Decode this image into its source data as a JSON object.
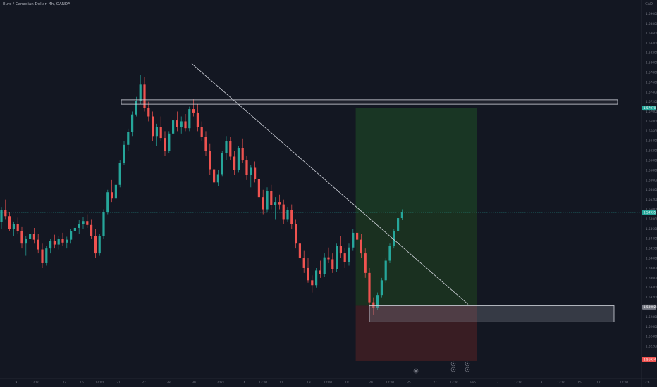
{
  "header": {
    "symbol_line": "Euro / Canadian Dollar, 4h, OANDA",
    "currency": "CAD"
  },
  "colors": {
    "background": "#131722",
    "up": "#26a69a",
    "down": "#ef5350",
    "profit_zone": "#1b3a25",
    "loss_zone": "#3b1e24",
    "price_line": "#26a69a"
  },
  "icons": [
    "dividend-marker-icon",
    "earnings-marker-icon",
    "split-marker-icon"
  ],
  "chart_data": {
    "type": "candlestick",
    "title": "Euro / Canadian Dollar, 4h, OANDA",
    "ylim": [
      1.5154,
      1.5908
    ],
    "y_ticks": [
      "1.59000",
      "1.58800",
      "1.58600",
      "1.58400",
      "1.58200",
      "1.58000",
      "1.57800",
      "1.57600",
      "1.57400",
      "1.57200",
      "1.57000",
      "1.56800",
      "1.56600",
      "1.56400",
      "1.56200",
      "1.56000",
      "1.55800",
      "1.55600",
      "1.55400",
      "1.55200",
      "1.55000",
      "1.54800",
      "1.54600",
      "1.54400",
      "1.54200",
      "1.54000",
      "1.53800",
      "1.53600",
      "1.53400",
      "1.53200",
      "1.53000",
      "1.52800",
      "1.52600",
      "1.52400",
      "1.52200"
    ],
    "x_ticks": [
      "9",
      "12:00",
      "14",
      "16",
      "12:00",
      "21",
      "22",
      "28",
      "30",
      "2021",
      "6",
      "12:00",
      "11",
      "13",
      "12:00",
      "18",
      "20",
      "12:00",
      "25",
      "27",
      "12:00",
      "Feb",
      "3",
      "12:00",
      "8",
      "12:00",
      "15",
      "17",
      "12:00"
    ],
    "price_tags": {
      "current": "1.54935",
      "target": "1.57070",
      "stop": "1.53002",
      "bottom": "1.51934"
    },
    "candles": [
      [
        1.5474,
        1.5505,
        1.546,
        1.5498
      ],
      [
        1.5498,
        1.552,
        1.548,
        1.5486
      ],
      [
        1.5486,
        1.5494,
        1.5455,
        1.546
      ],
      [
        1.546,
        1.5475,
        1.5445,
        1.547
      ],
      [
        1.547,
        1.5483,
        1.545,
        1.5455
      ],
      [
        1.5455,
        1.5465,
        1.542,
        1.543
      ],
      [
        1.543,
        1.5445,
        1.5405,
        1.544
      ],
      [
        1.544,
        1.5458,
        1.5425,
        1.545
      ],
      [
        1.545,
        1.5462,
        1.543,
        1.5438
      ],
      [
        1.5438,
        1.545,
        1.541,
        1.5418
      ],
      [
        1.5418,
        1.543,
        1.538,
        1.539
      ],
      [
        1.539,
        1.5425,
        1.5385,
        1.542
      ],
      [
        1.542,
        1.544,
        1.541,
        1.5435
      ],
      [
        1.5435,
        1.5448,
        1.542,
        1.5428
      ],
      [
        1.5428,
        1.5445,
        1.5418,
        1.544
      ],
      [
        1.544,
        1.5452,
        1.5425,
        1.5432
      ],
      [
        1.5432,
        1.5444,
        1.542,
        1.5438
      ],
      [
        1.5438,
        1.546,
        1.543,
        1.5455
      ],
      [
        1.5455,
        1.547,
        1.5445,
        1.5462
      ],
      [
        1.5462,
        1.5478,
        1.545,
        1.547
      ],
      [
        1.547,
        1.5485,
        1.546,
        1.5476
      ],
      [
        1.5476,
        1.549,
        1.5462,
        1.5468
      ],
      [
        1.5468,
        1.548,
        1.544,
        1.5445
      ],
      [
        1.5445,
        1.546,
        1.54,
        1.541
      ],
      [
        1.541,
        1.545,
        1.5405,
        1.5445
      ],
      [
        1.5445,
        1.55,
        1.544,
        1.5495
      ],
      [
        1.5495,
        1.554,
        1.549,
        1.5535
      ],
      [
        1.5535,
        1.556,
        1.5515,
        1.5522
      ],
      [
        1.5522,
        1.5555,
        1.5518,
        1.555
      ],
      [
        1.555,
        1.56,
        1.5545,
        1.5595
      ],
      [
        1.5595,
        1.564,
        1.559,
        1.5632
      ],
      [
        1.5632,
        1.5665,
        1.562,
        1.5658
      ],
      [
        1.5658,
        1.57,
        1.565,
        1.5694
      ],
      [
        1.5694,
        1.573,
        1.569,
        1.5722
      ],
      [
        1.5722,
        1.5775,
        1.5715,
        1.5755
      ],
      [
        1.5755,
        1.577,
        1.57,
        1.5708
      ],
      [
        1.5708,
        1.572,
        1.568,
        1.569
      ],
      [
        1.569,
        1.57,
        1.564,
        1.565
      ],
      [
        1.565,
        1.5675,
        1.563,
        1.5668
      ],
      [
        1.5668,
        1.569,
        1.564,
        1.5646
      ],
      [
        1.5646,
        1.566,
        1.561,
        1.562
      ],
      [
        1.562,
        1.566,
        1.5615,
        1.5655
      ],
      [
        1.5655,
        1.569,
        1.565,
        1.5682
      ],
      [
        1.5682,
        1.57,
        1.566,
        1.5668
      ],
      [
        1.5668,
        1.569,
        1.5655,
        1.568
      ],
      [
        1.568,
        1.5695,
        1.566,
        1.5666
      ],
      [
        1.5666,
        1.571,
        1.566,
        1.5705
      ],
      [
        1.5705,
        1.5725,
        1.569,
        1.5698
      ],
      [
        1.5698,
        1.5715,
        1.566,
        1.5668
      ],
      [
        1.5668,
        1.568,
        1.564,
        1.5648
      ],
      [
        1.5648,
        1.566,
        1.561,
        1.562
      ],
      [
        1.562,
        1.5635,
        1.557,
        1.5582
      ],
      [
        1.5582,
        1.559,
        1.5545,
        1.5555
      ],
      [
        1.5555,
        1.558,
        1.5548,
        1.5572
      ],
      [
        1.5572,
        1.562,
        1.5568,
        1.5615
      ],
      [
        1.5615,
        1.565,
        1.56,
        1.564
      ],
      [
        1.564,
        1.5648,
        1.56,
        1.5608
      ],
      [
        1.5608,
        1.562,
        1.557,
        1.558
      ],
      [
        1.558,
        1.563,
        1.5575,
        1.5625
      ],
      [
        1.5625,
        1.5645,
        1.5595,
        1.56
      ],
      [
        1.56,
        1.561,
        1.556,
        1.557
      ],
      [
        1.557,
        1.559,
        1.5545,
        1.5585
      ],
      [
        1.5585,
        1.5598,
        1.5555,
        1.5562
      ],
      [
        1.5562,
        1.5575,
        1.5515,
        1.5525
      ],
      [
        1.5525,
        1.554,
        1.549,
        1.55
      ],
      [
        1.55,
        1.5545,
        1.5495,
        1.5538
      ],
      [
        1.5538,
        1.555,
        1.55,
        1.5508
      ],
      [
        1.5508,
        1.5525,
        1.548,
        1.5515
      ],
      [
        1.5515,
        1.553,
        1.55,
        1.551
      ],
      [
        1.551,
        1.552,
        1.547,
        1.548
      ],
      [
        1.548,
        1.5505,
        1.5475,
        1.5498
      ],
      [
        1.5498,
        1.551,
        1.546,
        1.547
      ],
      [
        1.547,
        1.548,
        1.542,
        1.543
      ],
      [
        1.543,
        1.544,
        1.539,
        1.54
      ],
      [
        1.54,
        1.5415,
        1.537,
        1.538
      ],
      [
        1.538,
        1.54,
        1.535,
        1.5355
      ],
      [
        1.5355,
        1.5365,
        1.533,
        1.5345
      ],
      [
        1.5345,
        1.538,
        1.534,
        1.5375
      ],
      [
        1.5375,
        1.5395,
        1.536,
        1.5368
      ],
      [
        1.5368,
        1.541,
        1.5362,
        1.5402
      ],
      [
        1.5402,
        1.5422,
        1.539,
        1.5398
      ],
      [
        1.5398,
        1.541,
        1.537,
        1.5378
      ],
      [
        1.5378,
        1.543,
        1.5372,
        1.5425
      ],
      [
        1.5425,
        1.5445,
        1.54,
        1.541
      ],
      [
        1.541,
        1.542,
        1.538,
        1.5392
      ],
      [
        1.5392,
        1.543,
        1.5385,
        1.5422
      ],
      [
        1.5422,
        1.546,
        1.5415,
        1.5452
      ],
      [
        1.5452,
        1.547,
        1.543,
        1.5438
      ],
      [
        1.5438,
        1.545,
        1.54,
        1.541
      ],
      [
        1.541,
        1.542,
        1.536,
        1.537
      ],
      [
        1.537,
        1.538,
        1.53,
        1.531
      ],
      [
        1.531,
        1.532,
        1.5285,
        1.5298
      ],
      [
        1.5298,
        1.533,
        1.5295,
        1.5325
      ],
      [
        1.5325,
        1.536,
        1.532,
        1.5355
      ],
      [
        1.5355,
        1.54,
        1.535,
        1.5395
      ],
      [
        1.5395,
        1.543,
        1.539,
        1.5425
      ],
      [
        1.5425,
        1.546,
        1.542,
        1.5455
      ],
      [
        1.5455,
        1.549,
        1.545,
        1.5482
      ],
      [
        1.5482,
        1.55,
        1.5478,
        1.5494
      ]
    ],
    "trendline": {
      "from": [
        1.579,
        33
      ],
      "to": [
        1.5305,
        110
      ]
    },
    "resistance_zone": [
      1.5715,
      1.5724
    ],
    "support_zone": [
      1.527,
      1.5303
    ],
    "position": {
      "entry": 1.5494,
      "target": 1.5707,
      "stop": 1.519
    }
  }
}
